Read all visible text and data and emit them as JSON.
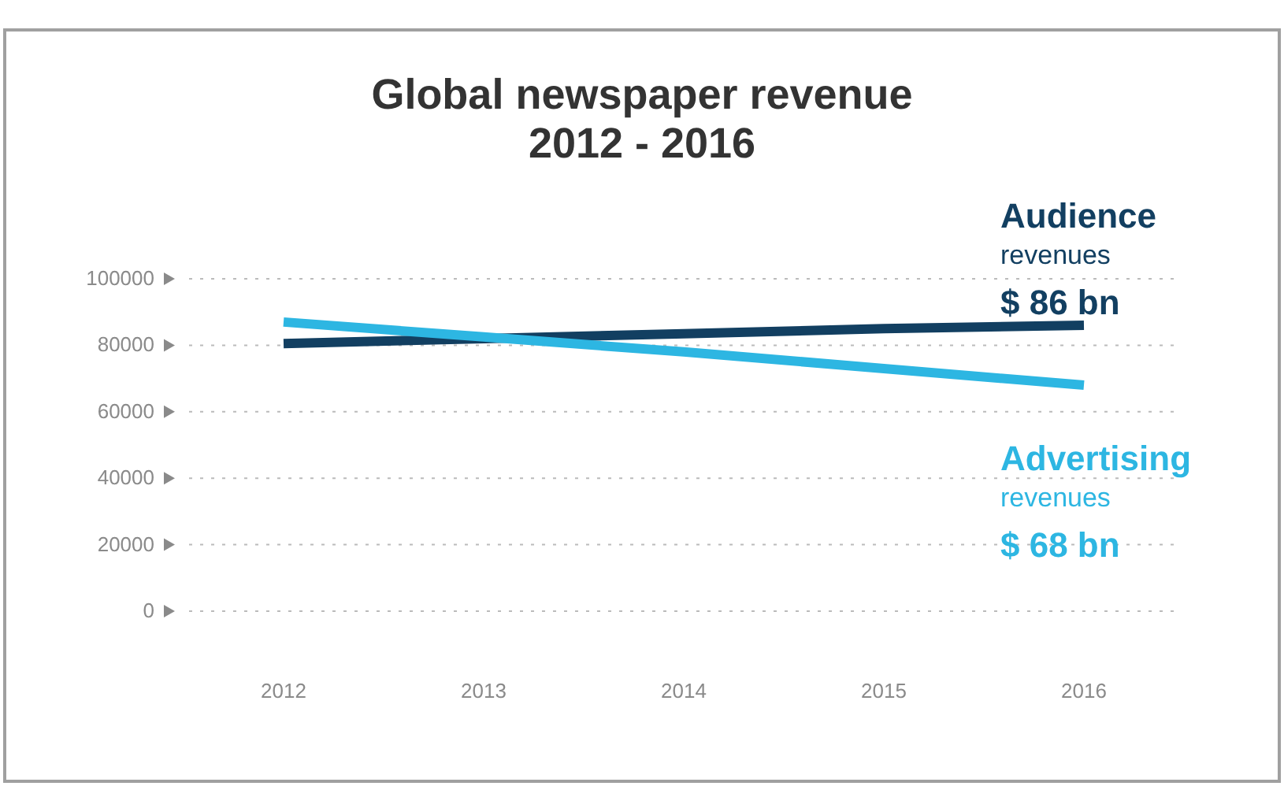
{
  "chart_data": {
    "type": "line",
    "title": "Global newspaper revenue\n2012 - 2016",
    "categories": [
      "2012",
      "2013",
      "2014",
      "2015",
      "2016"
    ],
    "series": [
      {
        "name": "Audience revenues",
        "color": "#123f61",
        "values": [
          80500,
          82000,
          83500,
          85000,
          86000
        ]
      },
      {
        "name": "Advertising revenues",
        "color": "#2db6e2",
        "values": [
          87000,
          82500,
          78000,
          73000,
          68000
        ]
      }
    ],
    "annotations": [
      "$ 86 bn",
      "$ 68 bn"
    ],
    "ylim": [
      0,
      100000
    ],
    "yticks": [
      0,
      20000,
      40000,
      60000,
      80000,
      100000
    ],
    "grid": "y",
    "marker": "none",
    "line_style": "solid"
  }
}
